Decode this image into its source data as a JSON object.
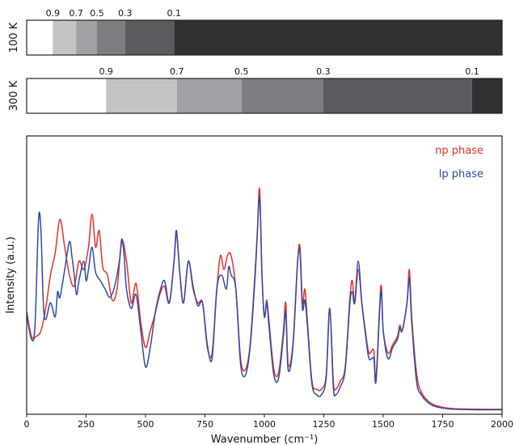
{
  "colors": {
    "np": "#e8302a",
    "lp": "#2e4aa6",
    "frame": "#222222"
  },
  "chart_data": [
    {
      "type": "heatmap",
      "ylabel": "100 K",
      "tick_labels": [
        "0.9",
        "0.7",
        "0.5",
        "0.3",
        "0.1"
      ],
      "boundaries_fraction": [
        0.055,
        0.104,
        0.148,
        0.207,
        0.31
      ],
      "segments": [
        {
          "color": "#ffffff"
        },
        {
          "color": "#c3c4c6"
        },
        {
          "color": "#9fa1a4"
        },
        {
          "color": "#7c7e82"
        },
        {
          "color": "#595b5f"
        },
        {
          "color": "#303133"
        }
      ]
    },
    {
      "type": "heatmap",
      "ylabel": "300 K",
      "tick_labels": [
        "0.9",
        "0.7",
        "0.5",
        "0.3",
        "0.1"
      ],
      "boundaries_fraction": [
        0.167,
        0.316,
        0.452,
        0.624,
        0.937
      ],
      "segments": [
        {
          "color": "#ffffff"
        },
        {
          "color": "#c3c4c6"
        },
        {
          "color": "#9fa1a4"
        },
        {
          "color": "#7c7e82"
        },
        {
          "color": "#595b5f"
        },
        {
          "color": "#303133"
        }
      ]
    },
    {
      "type": "line",
      "xlabel": "Wavenumber (cm⁻¹)",
      "ylabel": "Intensity (a.u.)",
      "xlim": [
        0,
        2000
      ],
      "ylim": [
        0,
        1
      ],
      "xticks": [
        0,
        250,
        500,
        750,
        1000,
        1250,
        1500,
        1750,
        2000
      ],
      "legend_position": "top-right",
      "grid": false,
      "series": [
        {
          "name": "np phase",
          "color": "#e8302a",
          "points": [
            [
              0,
              0.37
            ],
            [
              20,
              0.28
            ],
            [
              40,
              0.28
            ],
            [
              60,
              0.3
            ],
            [
              80,
              0.38
            ],
            [
              100,
              0.5
            ],
            [
              120,
              0.58
            ],
            [
              140,
              0.7
            ],
            [
              160,
              0.6
            ],
            [
              180,
              0.5
            ],
            [
              200,
              0.46
            ],
            [
              220,
              0.55
            ],
            [
              240,
              0.52
            ],
            [
              260,
              0.6
            ],
            [
              275,
              0.72
            ],
            [
              290,
              0.6
            ],
            [
              305,
              0.66
            ],
            [
              320,
              0.53
            ],
            [
              340,
              0.5
            ],
            [
              360,
              0.41
            ],
            [
              380,
              0.45
            ],
            [
              400,
              0.62
            ],
            [
              420,
              0.55
            ],
            [
              440,
              0.4
            ],
            [
              460,
              0.47
            ],
            [
              480,
              0.33
            ],
            [
              500,
              0.24
            ],
            [
              520,
              0.3
            ],
            [
              540,
              0.36
            ],
            [
              560,
              0.43
            ],
            [
              580,
              0.46
            ],
            [
              600,
              0.4
            ],
            [
              620,
              0.55
            ],
            [
              630,
              0.65
            ],
            [
              645,
              0.5
            ],
            [
              660,
              0.4
            ],
            [
              680,
              0.55
            ],
            [
              700,
              0.45
            ],
            [
              720,
              0.4
            ],
            [
              740,
              0.4
            ],
            [
              760,
              0.24
            ],
            [
              780,
              0.22
            ],
            [
              800,
              0.45
            ],
            [
              815,
              0.57
            ],
            [
              830,
              0.52
            ],
            [
              845,
              0.57
            ],
            [
              860,
              0.57
            ],
            [
              880,
              0.45
            ],
            [
              900,
              0.2
            ],
            [
              920,
              0.16
            ],
            [
              940,
              0.25
            ],
            [
              960,
              0.5
            ],
            [
              970,
              0.65
            ],
            [
              980,
              0.81
            ],
            [
              990,
              0.5
            ],
            [
              1000,
              0.35
            ],
            [
              1010,
              0.41
            ],
            [
              1020,
              0.33
            ],
            [
              1040,
              0.16
            ],
            [
              1060,
              0.15
            ],
            [
              1080,
              0.3
            ],
            [
              1090,
              0.4
            ],
            [
              1100,
              0.18
            ],
            [
              1120,
              0.25
            ],
            [
              1140,
              0.55
            ],
            [
              1150,
              0.6
            ],
            [
              1160,
              0.4
            ],
            [
              1170,
              0.45
            ],
            [
              1180,
              0.35
            ],
            [
              1200,
              0.12
            ],
            [
              1220,
              0.09
            ],
            [
              1240,
              0.09
            ],
            [
              1260,
              0.14
            ],
            [
              1275,
              0.38
            ],
            [
              1290,
              0.12
            ],
            [
              1300,
              0.09
            ],
            [
              1320,
              0.12
            ],
            [
              1340,
              0.17
            ],
            [
              1360,
              0.42
            ],
            [
              1370,
              0.48
            ],
            [
              1380,
              0.4
            ],
            [
              1395,
              0.52
            ],
            [
              1410,
              0.4
            ],
            [
              1425,
              0.3
            ],
            [
              1440,
              0.22
            ],
            [
              1460,
              0.23
            ],
            [
              1470,
              0.13
            ],
            [
              1490,
              0.46
            ],
            [
              1500,
              0.3
            ],
            [
              1520,
              0.22
            ],
            [
              1540,
              0.25
            ],
            [
              1560,
              0.28
            ],
            [
              1570,
              0.32
            ],
            [
              1580,
              0.3
            ],
            [
              1600,
              0.4
            ],
            [
              1610,
              0.52
            ],
            [
              1620,
              0.35
            ],
            [
              1640,
              0.15
            ],
            [
              1660,
              0.08
            ],
            [
              1700,
              0.04
            ],
            [
              1750,
              0.025
            ],
            [
              1800,
              0.02
            ],
            [
              1900,
              0.018
            ],
            [
              2000,
              0.018
            ]
          ]
        },
        {
          "name": "lp phase",
          "color": "#2e4aa6",
          "points": [
            [
              0,
              0.36
            ],
            [
              20,
              0.27
            ],
            [
              35,
              0.32
            ],
            [
              50,
              0.7
            ],
            [
              60,
              0.66
            ],
            [
              70,
              0.4
            ],
            [
              80,
              0.34
            ],
            [
              100,
              0.4
            ],
            [
              120,
              0.35
            ],
            [
              130,
              0.44
            ],
            [
              140,
              0.42
            ],
            [
              160,
              0.52
            ],
            [
              180,
              0.62
            ],
            [
              190,
              0.57
            ],
            [
              200,
              0.5
            ],
            [
              210,
              0.43
            ],
            [
              220,
              0.48
            ],
            [
              240,
              0.55
            ],
            [
              250,
              0.48
            ],
            [
              260,
              0.52
            ],
            [
              275,
              0.6
            ],
            [
              290,
              0.51
            ],
            [
              310,
              0.48
            ],
            [
              330,
              0.45
            ],
            [
              350,
              0.42
            ],
            [
              370,
              0.46
            ],
            [
              390,
              0.55
            ],
            [
              400,
              0.63
            ],
            [
              410,
              0.57
            ],
            [
              420,
              0.45
            ],
            [
              440,
              0.38
            ],
            [
              460,
              0.43
            ],
            [
              480,
              0.3
            ],
            [
              500,
              0.17
            ],
            [
              520,
              0.24
            ],
            [
              540,
              0.36
            ],
            [
              560,
              0.44
            ],
            [
              580,
              0.48
            ],
            [
              600,
              0.4
            ],
            [
              620,
              0.55
            ],
            [
              630,
              0.66
            ],
            [
              645,
              0.5
            ],
            [
              660,
              0.4
            ],
            [
              680,
              0.55
            ],
            [
              700,
              0.46
            ],
            [
              720,
              0.39
            ],
            [
              740,
              0.4
            ],
            [
              760,
              0.25
            ],
            [
              780,
              0.2
            ],
            [
              800,
              0.45
            ],
            [
              820,
              0.5
            ],
            [
              840,
              0.45
            ],
            [
              850,
              0.53
            ],
            [
              860,
              0.5
            ],
            [
              880,
              0.45
            ],
            [
              900,
              0.18
            ],
            [
              920,
              0.14
            ],
            [
              940,
              0.24
            ],
            [
              960,
              0.48
            ],
            [
              970,
              0.64
            ],
            [
              980,
              0.78
            ],
            [
              990,
              0.5
            ],
            [
              1000,
              0.35
            ],
            [
              1010,
              0.4
            ],
            [
              1020,
              0.31
            ],
            [
              1040,
              0.14
            ],
            [
              1060,
              0.13
            ],
            [
              1080,
              0.28
            ],
            [
              1090,
              0.37
            ],
            [
              1100,
              0.16
            ],
            [
              1120,
              0.24
            ],
            [
              1140,
              0.55
            ],
            [
              1150,
              0.58
            ],
            [
              1160,
              0.38
            ],
            [
              1170,
              0.41
            ],
            [
              1180,
              0.33
            ],
            [
              1200,
              0.11
            ],
            [
              1220,
              0.07
            ],
            [
              1240,
              0.07
            ],
            [
              1260,
              0.13
            ],
            [
              1275,
              0.38
            ],
            [
              1290,
              0.1
            ],
            [
              1300,
              0.07
            ],
            [
              1320,
              0.1
            ],
            [
              1340,
              0.16
            ],
            [
              1360,
              0.4
            ],
            [
              1370,
              0.44
            ],
            [
              1380,
              0.4
            ],
            [
              1395,
              0.55
            ],
            [
              1410,
              0.4
            ],
            [
              1425,
              0.29
            ],
            [
              1440,
              0.2
            ],
            [
              1460,
              0.2
            ],
            [
              1470,
              0.12
            ],
            [
              1490,
              0.44
            ],
            [
              1500,
              0.3
            ],
            [
              1520,
              0.2
            ],
            [
              1540,
              0.24
            ],
            [
              1560,
              0.27
            ],
            [
              1570,
              0.31
            ],
            [
              1580,
              0.3
            ],
            [
              1600,
              0.4
            ],
            [
              1610,
              0.49
            ],
            [
              1620,
              0.33
            ],
            [
              1640,
              0.12
            ],
            [
              1660,
              0.07
            ],
            [
              1700,
              0.035
            ],
            [
              1750,
              0.022
            ],
            [
              1800,
              0.018
            ],
            [
              1900,
              0.016
            ],
            [
              2000,
              0.016
            ]
          ]
        }
      ]
    }
  ]
}
